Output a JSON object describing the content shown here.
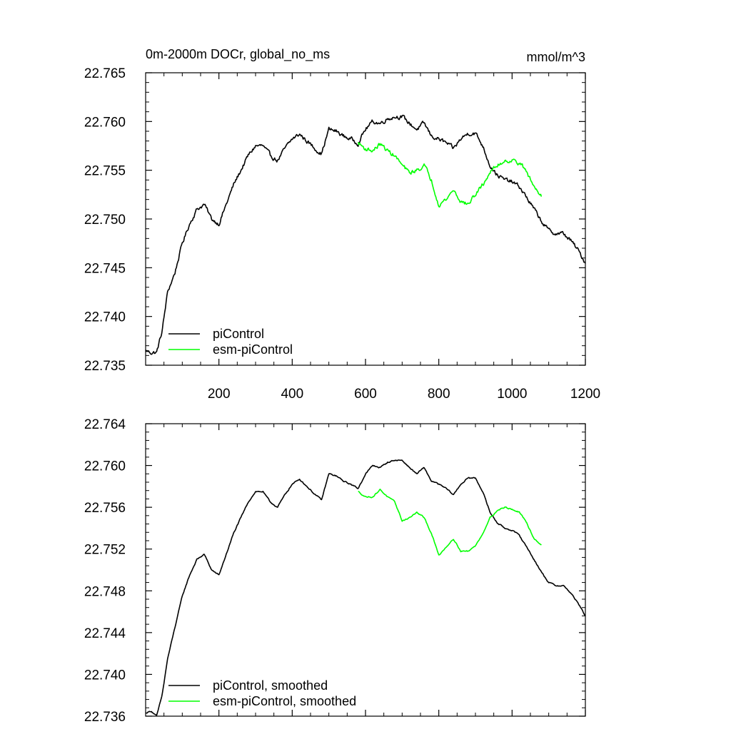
{
  "chart_data": [
    {
      "type": "line",
      "title": "0m-2000m DOCr, global_no_ms",
      "units_label": "mmol/m^3",
      "xlim": [
        0,
        1200
      ],
      "ylim": [
        22.735,
        22.765
      ],
      "x_ticks": [
        200,
        400,
        600,
        800,
        1000,
        1200
      ],
      "x_tick_labels": [
        "200",
        "400",
        "600",
        "800",
        "1000",
        "1200"
      ],
      "y_ticks": [
        22.735,
        22.74,
        22.745,
        22.75,
        22.755,
        22.76,
        22.765
      ],
      "y_tick_labels": [
        "22.735",
        "22.740",
        "22.745",
        "22.750",
        "22.755",
        "22.760",
        "22.765"
      ],
      "grid": false,
      "legend_position": "bottom-left",
      "noise": 0.00035,
      "series": [
        {
          "name": "piControl",
          "color": "#000000",
          "x": [
            0,
            15,
            30,
            45,
            60,
            80,
            100,
            120,
            140,
            160,
            180,
            200,
            220,
            240,
            260,
            280,
            300,
            320,
            340,
            360,
            380,
            400,
            420,
            440,
            460,
            480,
            500,
            520,
            540,
            560,
            580,
            600,
            620,
            640,
            660,
            680,
            700,
            720,
            740,
            760,
            780,
            800,
            820,
            840,
            860,
            880,
            900,
            920,
            940,
            960,
            980,
            1000,
            1020,
            1040,
            1060,
            1080,
            1100,
            1120,
            1140,
            1160,
            1180,
            1200
          ],
          "values": [
            22.7365,
            22.7363,
            22.7363,
            22.7385,
            22.7425,
            22.7445,
            22.7475,
            22.7495,
            22.751,
            22.7515,
            22.75,
            22.7495,
            22.7515,
            22.7535,
            22.755,
            22.7565,
            22.7575,
            22.7575,
            22.7565,
            22.756,
            22.7572,
            22.7582,
            22.7587,
            22.758,
            22.7573,
            22.7567,
            22.7592,
            22.759,
            22.7585,
            22.7582,
            22.7578,
            22.7592,
            22.76,
            22.7598,
            22.7603,
            22.7605,
            22.7605,
            22.7598,
            22.7592,
            22.7598,
            22.7585,
            22.7582,
            22.7578,
            22.7572,
            22.7582,
            22.7588,
            22.7588,
            22.7575,
            22.7555,
            22.7545,
            22.754,
            22.7538,
            22.7533,
            22.7522,
            22.751,
            22.7498,
            22.7488,
            22.7485,
            22.7485,
            22.7478,
            22.7468,
            22.7455
          ]
        },
        {
          "name": "esm-piControl",
          "color": "#00ff00",
          "x": [
            580,
            600,
            620,
            640,
            660,
            680,
            700,
            720,
            740,
            760,
            780,
            800,
            820,
            840,
            860,
            880,
            900,
            920,
            940,
            960,
            980,
            1000,
            1020,
            1040,
            1060,
            1080
          ],
          "values": [
            22.7578,
            22.7572,
            22.757,
            22.7577,
            22.757,
            22.7565,
            22.7555,
            22.7547,
            22.755,
            22.7555,
            22.754,
            22.7515,
            22.752,
            22.753,
            22.7518,
            22.7515,
            22.7525,
            22.7535,
            22.7548,
            22.7555,
            22.756,
            22.756,
            22.7558,
            22.7548,
            22.7533,
            22.7525
          ]
        }
      ]
    },
    {
      "type": "line",
      "title": "",
      "xlim": [
        0,
        1200
      ],
      "ylim": [
        22.736,
        22.764
      ],
      "x_ticks": [
        200,
        400,
        600,
        800,
        1000,
        1200
      ],
      "y_ticks": [
        22.736,
        22.74,
        22.744,
        22.748,
        22.752,
        22.756,
        22.76,
        22.764
      ],
      "y_tick_labels": [
        "22.736",
        "22.740",
        "22.744",
        "22.748",
        "22.752",
        "22.756",
        "22.760",
        "22.764"
      ],
      "grid": false,
      "legend_position": "bottom-left",
      "noise": 0.0001,
      "series": [
        {
          "name": "piControl, smoothed",
          "color": "#000000",
          "x": [
            0,
            15,
            30,
            45,
            60,
            80,
            100,
            120,
            140,
            160,
            180,
            200,
            220,
            240,
            260,
            280,
            300,
            320,
            340,
            360,
            380,
            400,
            420,
            440,
            460,
            480,
            500,
            520,
            540,
            560,
            580,
            600,
            620,
            640,
            660,
            680,
            700,
            720,
            740,
            760,
            780,
            800,
            820,
            840,
            860,
            880,
            900,
            920,
            940,
            960,
            980,
            1000,
            1020,
            1040,
            1060,
            1080,
            1100,
            1120,
            1140,
            1160,
            1180,
            1200
          ],
          "values": [
            22.7363,
            22.7365,
            22.736,
            22.738,
            22.7415,
            22.7445,
            22.7475,
            22.7495,
            22.751,
            22.7515,
            22.75,
            22.7495,
            22.7515,
            22.7535,
            22.755,
            22.7565,
            22.7575,
            22.7575,
            22.7565,
            22.756,
            22.7572,
            22.7582,
            22.7587,
            22.758,
            22.7573,
            22.7567,
            22.7592,
            22.759,
            22.7585,
            22.7582,
            22.7578,
            22.7592,
            22.76,
            22.7598,
            22.7603,
            22.7605,
            22.7605,
            22.7598,
            22.7592,
            22.7598,
            22.7585,
            22.7582,
            22.7578,
            22.7572,
            22.7582,
            22.7588,
            22.7588,
            22.7575,
            22.7555,
            22.7545,
            22.754,
            22.7538,
            22.7533,
            22.7522,
            22.751,
            22.7498,
            22.7488,
            22.7485,
            22.7485,
            22.7478,
            22.7468,
            22.7456
          ]
        },
        {
          "name": "esm-piControl, smoothed",
          "color": "#00ff00",
          "x": [
            580,
            600,
            620,
            640,
            660,
            680,
            700,
            720,
            740,
            760,
            780,
            800,
            820,
            840,
            860,
            880,
            900,
            920,
            940,
            960,
            980,
            1000,
            1020,
            1040,
            1060,
            1080
          ],
          "values": [
            22.7575,
            22.757,
            22.757,
            22.7577,
            22.757,
            22.7565,
            22.7547,
            22.755,
            22.7555,
            22.755,
            22.7535,
            22.7514,
            22.7522,
            22.753,
            22.7518,
            22.7518,
            22.7523,
            22.7535,
            22.755,
            22.7557,
            22.756,
            22.7558,
            22.7555,
            22.7545,
            22.753,
            22.7524
          ]
        }
      ]
    }
  ]
}
